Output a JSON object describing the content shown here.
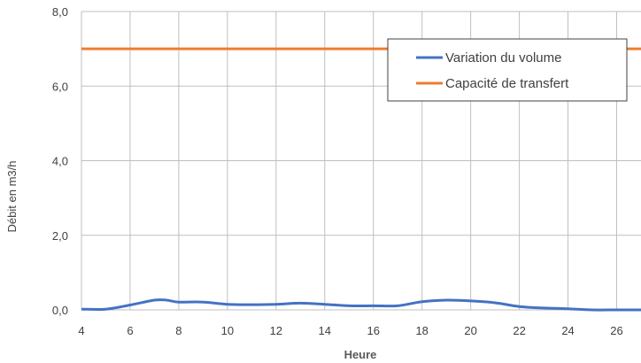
{
  "chart_data": {
    "type": "line",
    "title": "",
    "xlabel": "Heure",
    "ylabel": "Débit en m3/h",
    "xlim": [
      4,
      27
    ],
    "ylim": [
      0,
      8
    ],
    "x_ticks": [
      4,
      6,
      8,
      10,
      12,
      14,
      16,
      18,
      20,
      22,
      24,
      26
    ],
    "x_tick_labels": [
      "4",
      "6",
      "8",
      "10",
      "12",
      "14",
      "16",
      "18",
      "20",
      "22",
      "24",
      "26"
    ],
    "y_ticks": [
      0,
      2,
      4,
      6,
      8
    ],
    "y_tick_labels": [
      "0,0",
      "2,0",
      "4,0",
      "6,0",
      "8,0"
    ],
    "grid": {
      "horizontal": true,
      "vertical": true
    },
    "legend_position": "top-right",
    "series": [
      {
        "name": "Variation du volume",
        "color": "#4472C4",
        "x": [
          4,
          5,
          6,
          7,
          7.5,
          8,
          9,
          10,
          11,
          12,
          13,
          14,
          15,
          16,
          17,
          18,
          19,
          20,
          21,
          22,
          23,
          24,
          25,
          26,
          27
        ],
        "y": [
          0.02,
          0.02,
          0.13,
          0.26,
          0.26,
          0.21,
          0.21,
          0.15,
          0.14,
          0.15,
          0.18,
          0.15,
          0.11,
          0.11,
          0.11,
          0.22,
          0.26,
          0.24,
          0.19,
          0.09,
          0.05,
          0.03,
          0.0,
          0.0,
          0.0
        ]
      },
      {
        "name": "Capacité de transfert",
        "color": "#ED7D31",
        "x": [
          4,
          27
        ],
        "y": [
          7.0,
          7.0
        ]
      }
    ]
  }
}
